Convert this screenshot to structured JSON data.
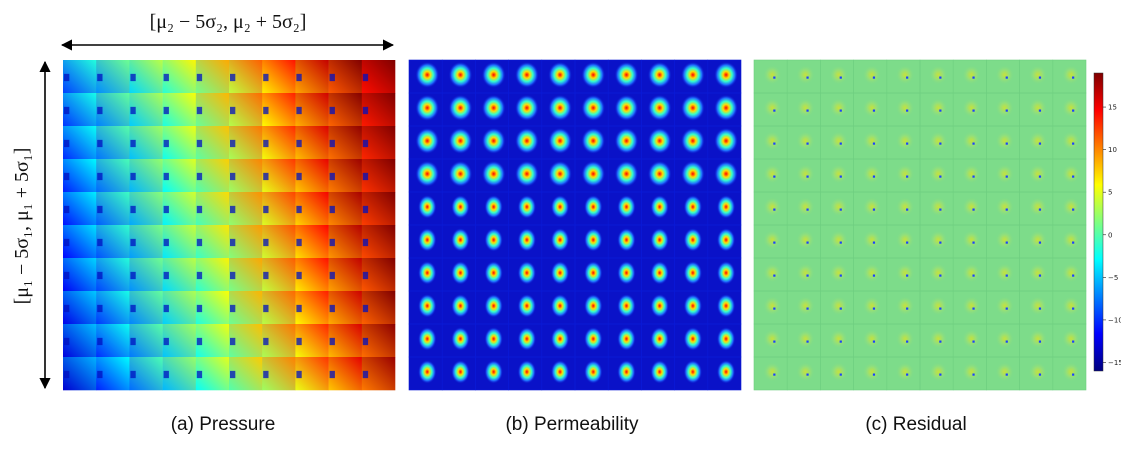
{
  "figure": {
    "x_axis_label": "[μ₂ − 5σ₂, μ₂ + 5σ₂]",
    "y_axis_label": "[μ₁ − 5σ₁, μ₁ + 5σ₁]",
    "grid_rows": 10,
    "grid_cols": 10
  },
  "panels": [
    {
      "caption": "(a) Pressure",
      "name": "pressure-panel"
    },
    {
      "caption": "(b) Permeability",
      "name": "permeability-panel"
    },
    {
      "caption": "(c) Residual",
      "name": "residual-panel"
    }
  ],
  "colorbar": {
    "ticks": [
      "15",
      "10",
      "5",
      "0",
      "−5",
      "−10",
      "−15"
    ],
    "tick_values": [
      15,
      10,
      5,
      0,
      -5,
      -10,
      -15
    ],
    "range": [
      -16,
      19
    ],
    "colormap": "jet"
  },
  "colors": {
    "pressure_low": "#1a30ff",
    "pressure_high": "#ff2a00",
    "permeability_bg": "#0a12c8",
    "residual_bg": "#7ddc8a"
  }
}
